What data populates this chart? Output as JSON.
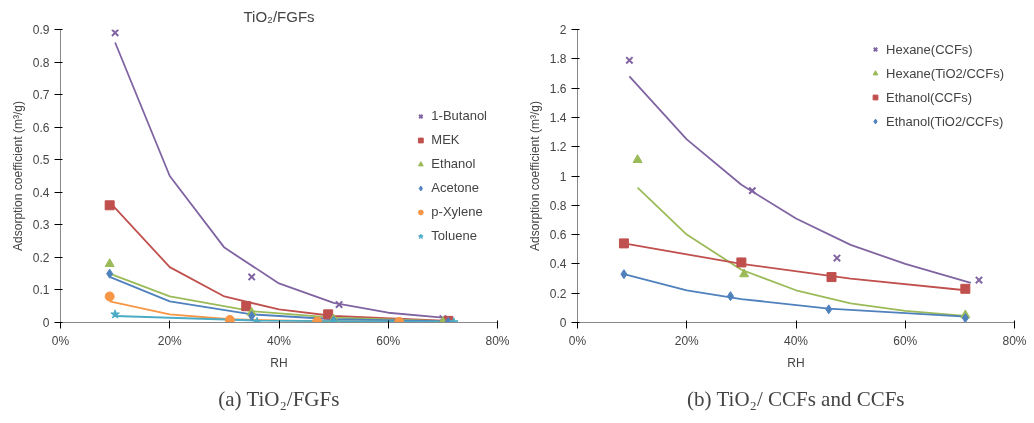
{
  "chart_data": [
    {
      "type": "scatter",
      "title": "TiO₂/FGFs",
      "xlabel": "RH",
      "ylabel": "Adsorption coefficient (m³/g)",
      "xlim": [
        0,
        80
      ],
      "xticks": [
        {
          "value": 0,
          "label": "0%"
        },
        {
          "value": 20,
          "label": "20%"
        },
        {
          "value": 40,
          "label": "40%"
        },
        {
          "value": 60,
          "label": "60%"
        },
        {
          "value": 80,
          "label": "80%"
        }
      ],
      "ylim": [
        0,
        0.9
      ],
      "yticks": [
        0,
        0.1,
        0.2,
        0.3,
        0.4,
        0.5,
        0.6,
        0.7,
        0.8,
        0.9
      ],
      "grid": false,
      "legend": "right",
      "annotations": [
        "(a) TiO₂/FGFs"
      ],
      "series": [
        {
          "type": "line",
          "color": "#8064a2",
          "x": [
            10,
            20,
            30,
            40,
            50,
            60,
            70
          ],
          "values": [
            0.86,
            0.45,
            0.23,
            0.12,
            0.06,
            0.03,
            0.015
          ]
        },
        {
          "type": "line",
          "color": "#c0504d",
          "x": [
            9,
            20,
            30,
            40,
            50,
            71
          ],
          "values": [
            0.37,
            0.17,
            0.08,
            0.04,
            0.02,
            0.005
          ]
        },
        {
          "type": "line",
          "color": "#9bbb59",
          "x": [
            9,
            20,
            35,
            50,
            70
          ],
          "values": [
            0.15,
            0.08,
            0.035,
            0.015,
            0.004
          ]
        },
        {
          "type": "line",
          "color": "#4f81bd",
          "x": [
            9,
            20,
            35,
            50,
            71
          ],
          "values": [
            0.14,
            0.065,
            0.025,
            0.01,
            0.003
          ]
        },
        {
          "type": "line",
          "color": "#f79646",
          "x": [
            9,
            20,
            31,
            47,
            62
          ],
          "values": [
            0.065,
            0.025,
            0.01,
            0.004,
            0.002
          ]
        },
        {
          "type": "line",
          "color": "#4bacc6",
          "x": [
            10,
            36,
            72
          ],
          "values": [
            0.02,
            0.006,
            0.002
          ]
        },
        {
          "name": "1-Butanol",
          "marker": "cross",
          "color": "#8064a2",
          "x": [
            10,
            35,
            51,
            70
          ],
          "values": [
            0.89,
            0.14,
            0.055,
            0.012
          ]
        },
        {
          "name": "MEK",
          "marker": "square",
          "color": "#c0504d",
          "x": [
            9,
            34,
            49,
            71
          ],
          "values": [
            0.36,
            0.05,
            0.025,
            0.005
          ]
        },
        {
          "name": "Ethanol",
          "marker": "triangle",
          "color": "#9bbb59",
          "x": [
            9,
            35,
            50,
            70
          ],
          "values": [
            0.18,
            0.03,
            0.01,
            0.002
          ]
        },
        {
          "name": "Acetone",
          "marker": "diamond",
          "color": "#4f81bd",
          "x": [
            9,
            35,
            50,
            71
          ],
          "values": [
            0.15,
            0.02,
            0.005,
            0.002
          ]
        },
        {
          "name": "p-Xylene",
          "marker": "circle",
          "color": "#f79646",
          "x": [
            9,
            31,
            47,
            62
          ],
          "values": [
            0.08,
            0.008,
            0.003,
            0.002
          ]
        },
        {
          "name": "Toluene",
          "marker": "star",
          "color": "#4bacc6",
          "x": [
            10,
            36,
            50,
            72
          ],
          "values": [
            0.025,
            0.002,
            0.002,
            0.001
          ]
        }
      ]
    },
    {
      "type": "scatter",
      "xlabel": "RH",
      "ylabel": "Adsorption coefficient (m³/g)",
      "xlim": [
        0,
        80
      ],
      "xticks": [
        {
          "value": 0,
          "label": "0%"
        },
        {
          "value": 20,
          "label": "20%"
        },
        {
          "value": 40,
          "label": "40%"
        },
        {
          "value": 60,
          "label": "60%"
        },
        {
          "value": 80,
          "label": "80%"
        }
      ],
      "ylim": [
        0,
        2
      ],
      "yticks": [
        0,
        0.2,
        0.4,
        0.6,
        0.8,
        1,
        1.2,
        1.4,
        1.6,
        1.8,
        2
      ],
      "grid": false,
      "legend": "top right",
      "annotations": [
        "(b) TiO₂/ CCFs and CCFs"
      ],
      "series": [
        {
          "type": "line",
          "color": "#8064a2",
          "x": [
            9.5,
            20,
            30,
            40,
            50,
            60,
            72
          ],
          "values": [
            1.68,
            1.25,
            0.94,
            0.71,
            0.53,
            0.4,
            0.27
          ]
        },
        {
          "type": "line",
          "color": "#9bbb59",
          "x": [
            11,
            20,
            30,
            40,
            50,
            60,
            71
          ],
          "values": [
            0.92,
            0.6,
            0.36,
            0.22,
            0.13,
            0.08,
            0.045
          ]
        },
        {
          "type": "line",
          "color": "#c0504d",
          "x": [
            8.5,
            30,
            50,
            71
          ],
          "values": [
            0.54,
            0.4,
            0.3,
            0.22
          ]
        },
        {
          "type": "line",
          "color": "#4f81bd",
          "x": [
            8.5,
            20,
            30,
            46,
            71
          ],
          "values": [
            0.33,
            0.22,
            0.16,
            0.095,
            0.04
          ]
        },
        {
          "name": "Hexane(CCFs)",
          "marker": "cross",
          "color": "#8064a2",
          "x": [
            9.5,
            32,
            47.5,
            73.5
          ],
          "values": [
            1.79,
            0.9,
            0.44,
            0.29
          ]
        },
        {
          "name": "Hexane(TiO2/CCFs)",
          "marker": "triangle",
          "color": "#9bbb59",
          "x": [
            11,
            30.5,
            71
          ],
          "values": [
            1.11,
            0.33,
            0.05
          ]
        },
        {
          "name": "Ethanol(CCFs)",
          "marker": "square",
          "color": "#c0504d",
          "x": [
            8.5,
            30,
            46.5,
            71
          ],
          "values": [
            0.54,
            0.41,
            0.31,
            0.23
          ]
        },
        {
          "name": "Ethanol(TiO2/CCFs)",
          "marker": "diamond",
          "color": "#4f81bd",
          "x": [
            8.5,
            28,
            46,
            71
          ],
          "values": [
            0.33,
            0.18,
            0.09,
            0.03
          ]
        }
      ]
    }
  ]
}
